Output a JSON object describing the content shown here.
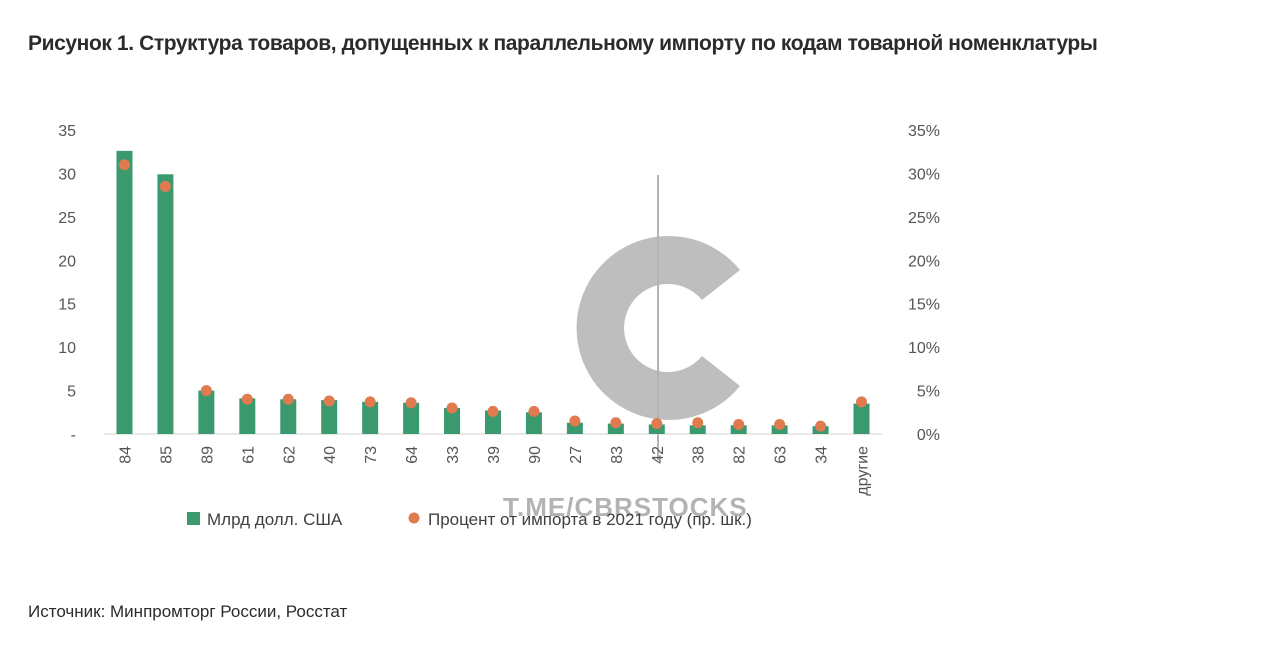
{
  "title": "Рисунок 1. Структура товаров, допущенных к параллельному импорту по кодам товарной номенклатуры",
  "source": "Источник: Минпромторг России, Росстат",
  "watermark": "T.ME/CBRSTOCKS",
  "chart_data": {
    "type": "bar",
    "categories": [
      "84",
      "85",
      "89",
      "61",
      "62",
      "40",
      "73",
      "64",
      "33",
      "39",
      "90",
      "27",
      "83",
      "42",
      "38",
      "82",
      "63",
      "34",
      "другие"
    ],
    "series": [
      {
        "name": "Млрд долл. США",
        "type": "bar",
        "axis": "left",
        "color": "#3a9a6e",
        "values": [
          32.6,
          29.9,
          5.0,
          4.1,
          4.0,
          3.9,
          3.7,
          3.6,
          3.0,
          2.7,
          2.5,
          1.3,
          1.2,
          1.1,
          1.0,
          1.0,
          1.0,
          0.9,
          3.5
        ]
      },
      {
        "name": "Процент от импорта в 2021 году (пр. шк.)",
        "type": "scatter",
        "axis": "right",
        "color": "#e07a4f",
        "values": [
          0.31,
          0.285,
          0.05,
          0.04,
          0.04,
          0.038,
          0.037,
          0.036,
          0.03,
          0.026,
          0.026,
          0.015,
          0.013,
          0.012,
          0.013,
          0.011,
          0.011,
          0.009,
          0.037
        ]
      }
    ],
    "y_left": {
      "ticks": [
        "-",
        "5",
        "10",
        "15",
        "20",
        "25",
        "30",
        "35"
      ],
      "range": [
        0,
        35
      ]
    },
    "y_right": {
      "ticks": [
        "0%",
        "5%",
        "10%",
        "15%",
        "20%",
        "25%",
        "30%",
        "35%"
      ],
      "range": [
        0,
        0.35
      ]
    },
    "grid": false,
    "legend_position": "bottom"
  }
}
